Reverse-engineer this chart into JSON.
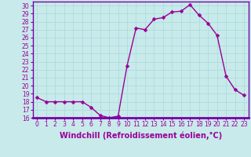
{
  "x": [
    0,
    1,
    2,
    3,
    4,
    5,
    6,
    7,
    8,
    9,
    10,
    11,
    12,
    13,
    14,
    15,
    16,
    17,
    18,
    19,
    20,
    21,
    22,
    23
  ],
  "y": [
    18.5,
    18.0,
    18.0,
    18.0,
    18.0,
    18.0,
    17.3,
    16.3,
    16.0,
    16.2,
    22.5,
    27.2,
    27.0,
    28.3,
    28.5,
    29.2,
    29.3,
    30.1,
    28.8,
    27.8,
    26.3,
    21.2,
    19.5,
    18.8
  ],
  "line_color": "#990099",
  "marker": "D",
  "marker_size": 2.5,
  "bg_color": "#c8eaea",
  "grid_color": "#b0dede",
  "xlabel": "Windchill (Refroidissement éolien,°C)",
  "xlabel_fontsize": 7,
  "ylim": [
    16,
    30.5
  ],
  "xlim": [
    -0.5,
    23.5
  ],
  "yticks": [
    16,
    17,
    18,
    19,
    20,
    21,
    22,
    23,
    24,
    25,
    26,
    27,
    28,
    29,
    30
  ],
  "xticks": [
    0,
    1,
    2,
    3,
    4,
    5,
    6,
    7,
    8,
    9,
    10,
    11,
    12,
    13,
    14,
    15,
    16,
    17,
    18,
    19,
    20,
    21,
    22,
    23
  ],
  "tick_fontsize": 5.5,
  "line_width": 1.0,
  "spine_color": "#7700aa",
  "bottom_bar_color": "#7700aa"
}
